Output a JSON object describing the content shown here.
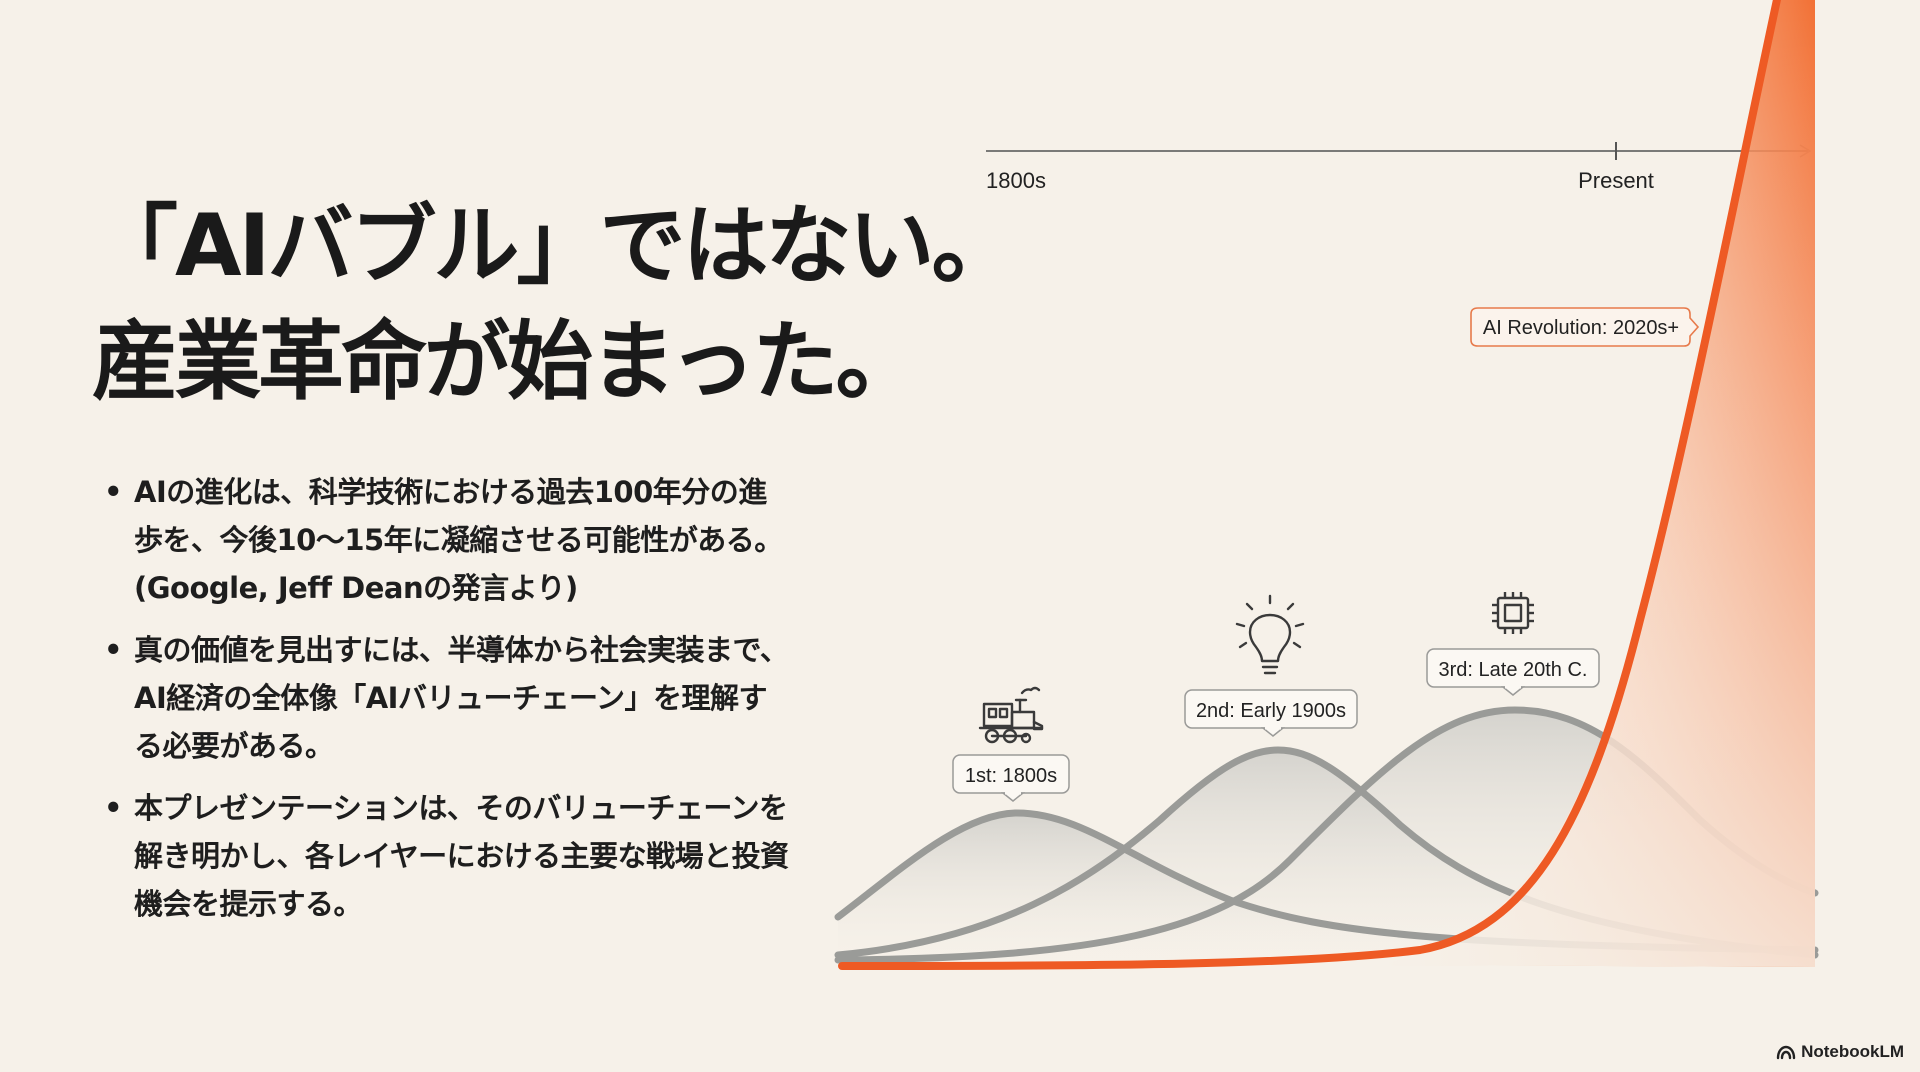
{
  "title": {
    "line1": "「AIバブル」ではない。",
    "line2": "産業革命が始まった。"
  },
  "bullets": [
    {
      "text": "AIの進化は、科学技術における過去100年分の進歩を、今後10〜15年に凝縮させる可能性がある。(Google, Jeff Deanの発言より)"
    },
    {
      "text": "真の価値を見出すには、半導体から社会実装まで、AI経済の全体像「AIバリューチェーン」を理解する必要がある。"
    },
    {
      "text": "本プレゼンテーションは、そのバリューチェーンを解き明かし、各レイヤーにおける主要な戦場と投資機会を提示する。"
    }
  ],
  "timeline": {
    "start_label": "1800s",
    "present_label": "Present"
  },
  "revolutions": [
    {
      "label": "1st: 1800s",
      "icon": "train-icon"
    },
    {
      "label": "2nd: Early 1900s",
      "icon": "lightbulb-icon"
    },
    {
      "label": "3rd: Late 20th C.",
      "icon": "microchip-icon"
    }
  ],
  "ai_revolution": {
    "label": "AI Revolution: 2020s+"
  },
  "colors": {
    "background": "#f6f1e9",
    "accent": "#ee5a24",
    "curve_gray": "#9a9b98",
    "text": "#1d1d1d"
  },
  "brand": {
    "name": "NotebookLM",
    "icon": "notebooklm-logo-icon"
  }
}
